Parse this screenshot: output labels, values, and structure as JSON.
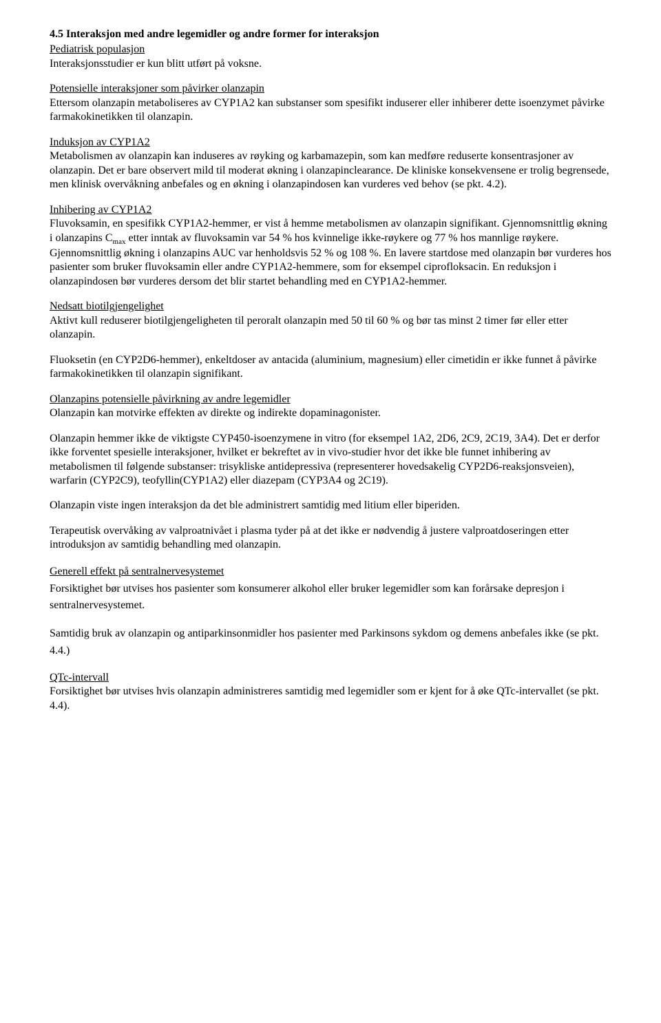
{
  "s45": {
    "title": "4.5 Interaksjon med andre legemidler og andre former for interaksjon",
    "pediatric_head": "Pediatrisk populasjon",
    "pediatric_body": "Interaksjonsstudier er kun blitt utført på voksne.",
    "pot_head": "Potensielle interaksjoner som påvirker olanzapin",
    "pot_body": "Ettersom olanzapin metaboliseres av CYP1A2 kan substanser som spesifikt induserer eller inhiberer dette isoenzymet påvirke farmakokinetikken til olanzapin.",
    "induksjon_head": "Induksjon av CYP1A2",
    "induksjon_body": "Metabolismen av olanzapin kan induseres av røyking og karbamazepin, som kan medføre reduserte konsentrasjoner av olanzapin. Det er bare observert mild til moderat økning i olanzapinclearance. De kliniske konsekvensene er trolig begrensede, men klinisk overvåkning anbefales og en økning i olanzapindosen kan vurderes ved behov (se pkt. 4.2).",
    "inhib_head": "Inhibering av CYP1A2",
    "inhib_body_1a": "Fluvoksamin, en spesifikk CYP1A2-hemmer, er vist å hemme metabolismen av olanzapin signifikant. Gjennomsnittlig økning i olanzapins C",
    "inhib_body_1b": " etter inntak av fluvoksamin var 54 % hos kvinnelige ikke-røykere og 77 % hos mannlige røykere. Gjennomsnittlig økning i olanzapins AUC var henholdsvis 52 % og 108 %. En lavere startdose med olanzapin bør vurderes hos pasienter som bruker fluvoksamin eller andre CYP1A2-hemmere, som for eksempel ciprofloksacin. En reduksjon i olanzapindosen bør vurderes dersom det blir startet behandling med en CYP1A2-hemmer.",
    "cmax_sub": "max",
    "nedsatt_head": "Nedsatt biotilgjengelighet",
    "nedsatt_body": "Aktivt kull reduserer biotilgjengeligheten til peroralt olanzapin med 50 til 60 % og bør tas minst 2 timer før eller etter olanzapin.",
    "fluoksetin": "Fluoksetin (en CYP2D6-hemmer), enkeltdoser av antacida (aluminium, magnesium) eller cimetidin er ikke funnet å påvirke farmakokinetikken til olanzapin signifikant.",
    "olanz_pot_head": "Olanzapins potensielle påvirkning av andre legemidler",
    "olanz_pot_body": "Olanzapin kan motvirke effekten av direkte og indirekte dopaminagonister.",
    "cyp450": "Olanzapin hemmer ikke de viktigste CYP450-isoenzymene in vitro (for eksempel 1A2, 2D6, 2C9, 2C19, 3A4). Det er derfor ikke forventet spesielle interaksjoner, hvilket er bekreftet av in vivo-studier hvor det ikke ble funnet inhibering av metabolismen til følgende substanser: trisykliske antidepressiva (representerer hovedsakelig CYP2D6-reaksjonsveien), warfarin (CYP2C9), teofyllin(CYP1A2) eller diazepam (CYP3A4 og 2C19).",
    "litium": "Olanzapin viste ingen interaksjon da det ble administrert samtidig med litium eller biperiden.",
    "valproat": "Terapeutisk overvåking av valproatnivået i plasma tyder på at det ikke er nødvendig å justere valproatdoseringen etter introduksjon av samtidig behandling med olanzapin.",
    "generell_head": "Generell effekt på sentralnervesystemet",
    "generell_body": "Forsiktighet bør utvises hos pasienter som konsumerer alkohol eller bruker legemidler som kan forårsake depresjon i sentralnervesystemet.",
    "parkinson": "Samtidig bruk av olanzapin og antiparkinsonmidler hos pasienter med Parkinsons sykdom og demens anbefales ikke (se pkt. 4.4.)",
    "qtc_head": "QTc-intervall",
    "qtc_body": "Forsiktighet bør utvises hvis olanzapin administreres samtidig med legemidler som er kjent for å øke QTc-intervallet (se pkt. 4.4)."
  }
}
